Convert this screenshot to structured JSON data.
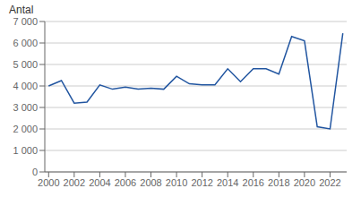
{
  "chart_data": {
    "type": "line",
    "y_label": "Antal",
    "x": [
      2000,
      2001,
      2002,
      2003,
      2004,
      2005,
      2006,
      2007,
      2008,
      2009,
      2010,
      2011,
      2012,
      2013,
      2014,
      2015,
      2016,
      2017,
      2018,
      2019,
      2020,
      2021,
      2022,
      2023
    ],
    "values": [
      4000,
      4250,
      3200,
      3250,
      4050,
      3850,
      3950,
      3850,
      3900,
      3850,
      4450,
      4100,
      4050,
      4050,
      4800,
      4200,
      4800,
      4800,
      4550,
      6300,
      6100,
      2100,
      2000,
      6450
    ],
    "color": "#2155A0",
    "xlim": [
      1999.7,
      2023.3
    ],
    "xticks": [
      2000,
      2002,
      2004,
      2006,
      2008,
      2010,
      2012,
      2014,
      2016,
      2018,
      2020,
      2022
    ],
    "ylim": [
      0,
      7000
    ],
    "yticks": [
      0,
      {
        "value": 1000,
        "label": "1 000"
      },
      {
        "value": 2000,
        "label": "2 000"
      },
      {
        "value": 3000,
        "label": "3 000"
      },
      {
        "value": 4000,
        "label": "4 000"
      },
      {
        "value": 5000,
        "label": "5 000"
      },
      {
        "value": 6000,
        "label": "6 000"
      },
      {
        "value": 7000,
        "label": "7 000"
      }
    ],
    "grid": "y"
  }
}
